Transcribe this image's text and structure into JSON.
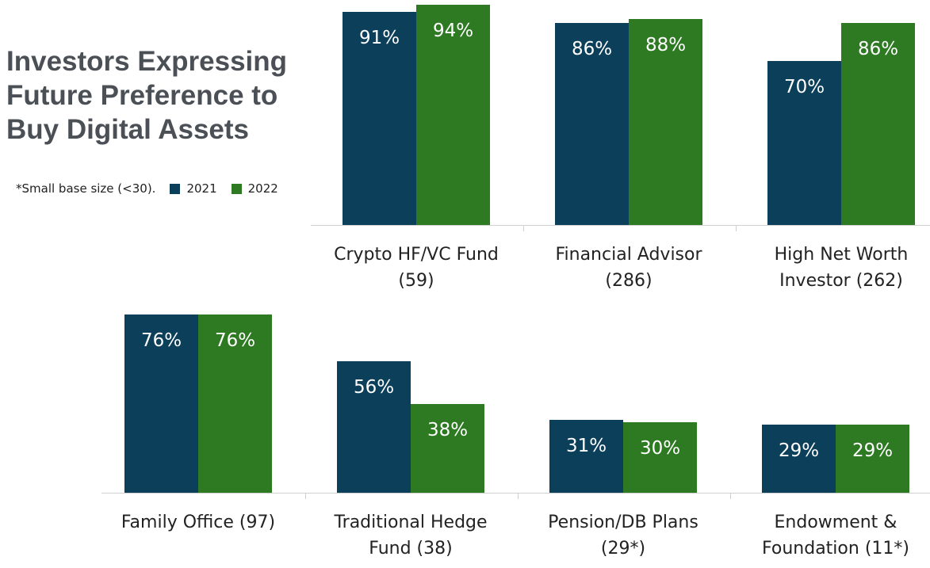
{
  "title_lines": [
    "Investors Expressing",
    "Future Preference to",
    "Buy Digital Assets"
  ],
  "legend": {
    "note": "*Small base size (<30).",
    "series": [
      "2021",
      "2022"
    ]
  },
  "colors": {
    "2021": "#0b3f5a",
    "2022": "#2e7a22"
  },
  "chart_data": [
    {
      "type": "bar",
      "categories": [
        [
          "Crypto HF/VC Fund",
          "(59)"
        ],
        [
          "Financial Advisor",
          "(286)"
        ],
        [
          "High Net Worth",
          "Investor (262)"
        ]
      ],
      "series": [
        {
          "name": "2021",
          "values": [
            91,
            86,
            70
          ]
        },
        {
          "name": "2022",
          "values": [
            94,
            88,
            86
          ]
        }
      ],
      "ylim": [
        0,
        100
      ],
      "value_suffix": "%"
    },
    {
      "type": "bar",
      "categories": [
        [
          "Family Office (97)",
          ""
        ],
        [
          "Traditional Hedge",
          "Fund (38)"
        ],
        [
          "Pension/DB Plans",
          "(29*)"
        ],
        [
          "Endowment &",
          "Foundation (11*)"
        ]
      ],
      "series": [
        {
          "name": "2021",
          "values": [
            76,
            56,
            31,
            29
          ]
        },
        {
          "name": "2022",
          "values": [
            76,
            38,
            30,
            29
          ]
        }
      ],
      "ylim": [
        0,
        100
      ],
      "value_suffix": "%"
    }
  ]
}
